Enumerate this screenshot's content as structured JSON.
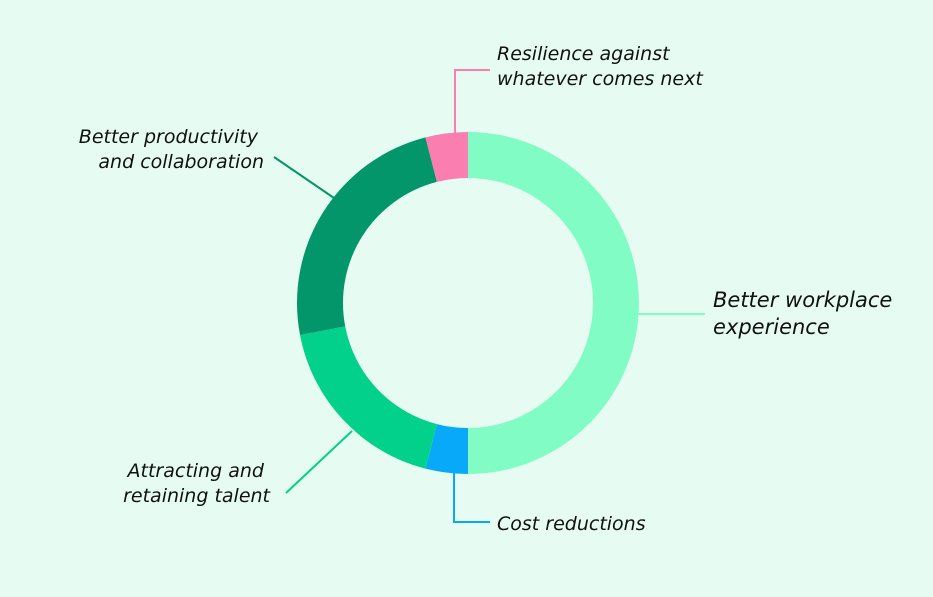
{
  "background": "#e6fcf2",
  "chart_data": {
    "type": "pie",
    "variant": "donut",
    "start_angle_deg": 0,
    "direction": "clockwise",
    "slices": [
      {
        "label_lines": [
          "Better workplace",
          "experience"
        ],
        "value": 50,
        "color": "#80fcc4"
      },
      {
        "label_lines": [
          "Cost reductions"
        ],
        "value": 4,
        "color": "#08a9f9"
      },
      {
        "label_lines": [
          "Attracting and",
          "retaining talent"
        ],
        "value": 18,
        "color": "#02d18b"
      },
      {
        "label_lines": [
          "Better productivity",
          "and collaboration"
        ],
        "value": 24,
        "color": "#02966a"
      },
      {
        "label_lines": [
          "Resilience against",
          "whatever comes next"
        ],
        "value": 4,
        "color": "#fb7eb0"
      }
    ]
  }
}
